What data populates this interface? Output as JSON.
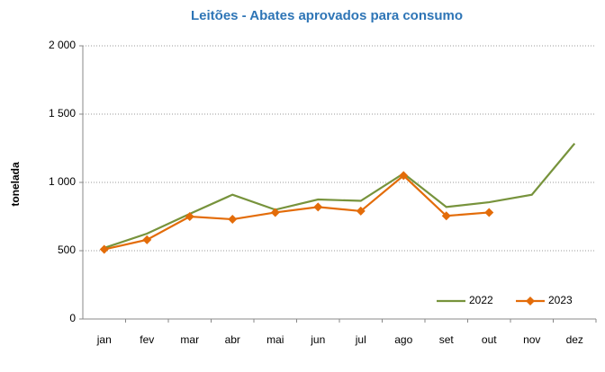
{
  "chart_data": {
    "type": "line",
    "title": "Leitões - Abates aprovados para consumo",
    "y_label": "tonelada",
    "categories": [
      "jan",
      "fev",
      "mar",
      "abr",
      "mai",
      "jun",
      "jul",
      "ago",
      "set",
      "out",
      "nov",
      "dez"
    ],
    "series": [
      {
        "name": "2022",
        "color": "#77933c",
        "marker": false,
        "values": [
          520,
          625,
          770,
          910,
          800,
          875,
          865,
          1065,
          820,
          855,
          910,
          1285
        ]
      },
      {
        "name": "2023",
        "color": "#e36c09",
        "marker": true,
        "values": [
          510,
          580,
          750,
          730,
          780,
          820,
          790,
          1050,
          755,
          780,
          null,
          null
        ]
      }
    ],
    "ylim": [
      0,
      2000
    ],
    "yticks": [
      0,
      500,
      {
        "value": 1000,
        "label": "1 000"
      },
      {
        "value": 1500,
        "label": "1 500"
      },
      {
        "value": 2000,
        "label": "2 000"
      }
    ],
    "grid": true,
    "legend": "bottom-right"
  }
}
